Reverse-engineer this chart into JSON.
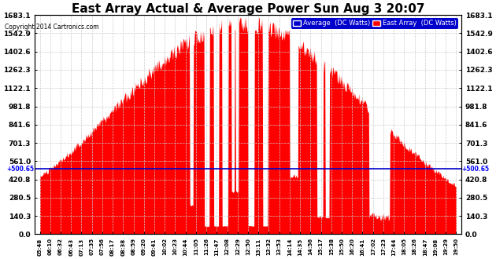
{
  "title": "East Array Actual & Average Power Sun Aug 3 20:07",
  "copyright": "Copyright 2014 Cartronics.com",
  "legend_avg": "Average  (DC Watts)",
  "legend_east": "East Array  (DC Watts)",
  "ymin": 0.0,
  "ymax": 1683.1,
  "yticks": [
    0.0,
    140.3,
    280.5,
    420.8,
    561.0,
    701.3,
    841.6,
    981.8,
    1122.1,
    1262.3,
    1402.6,
    1542.9,
    1683.1
  ],
  "hline": 500.65,
  "bg_color": "#ffffff",
  "fill_color_east": "#ff0000",
  "fill_color_avg": "#0000cc",
  "grid_color": "#cccccc",
  "title_fontsize": 11,
  "xtick_labels": [
    "05:48",
    "06:10",
    "06:32",
    "06:43",
    "07:13",
    "07:35",
    "07:56",
    "08:17",
    "08:38",
    "08:59",
    "09:20",
    "09:41",
    "10:02",
    "10:23",
    "10:44",
    "11:05",
    "11:26",
    "11:47",
    "12:08",
    "12:29",
    "12:50",
    "13:11",
    "13:32",
    "13:53",
    "14:14",
    "14:35",
    "14:56",
    "15:17",
    "15:38",
    "15:50",
    "16:20",
    "16:41",
    "17:02",
    "17:23",
    "17:44",
    "18:05",
    "18:26",
    "18:47",
    "19:08",
    "19:29",
    "19:50"
  ]
}
